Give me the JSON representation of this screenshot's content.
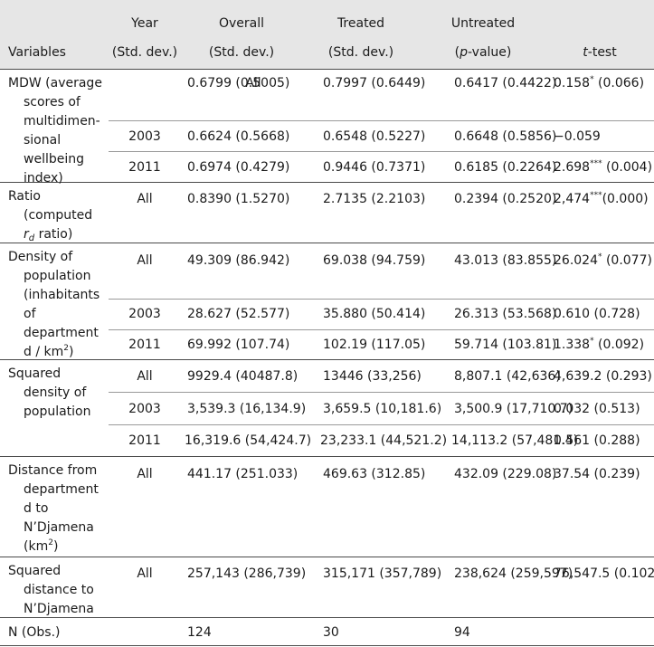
{
  "header": {
    "year_line1": "Year",
    "year_line2": "(Std. dev.)",
    "overall_line1": "Overall",
    "overall_line2": "(Std. dev.)",
    "treated_line1": "Treated",
    "treated_line2": "(Std. dev.)",
    "untreated_line1": "Untreated",
    "untreated_line2_pre": "(",
    "untreated_line2_italic": "p",
    "untreated_line2_post": "-value)",
    "variables": "Variables",
    "ttest_italic": "t",
    "ttest_rest": "-test"
  },
  "rows": {
    "mdw": {
      "label": [
        "MDW (average",
        "scores of",
        "multidimen-",
        "sional",
        "wellbeing",
        "index)"
      ],
      "all": {
        "year": "All",
        "overall": "0.6799 (0.5005)",
        "treated": "0.7997 (0.6449)",
        "untreated": "0.6417 (0.4422)",
        "t_value": "0.158",
        "t_stars": "*",
        "t_p": " (0.066)"
      },
      "y2003": {
        "year": "2003",
        "overall": "0.6624 (0.5668)",
        "treated": "0.6548 (0.5227)",
        "untreated": "0.6648 (0.5856)",
        "t_value": "−0.059",
        "t_stars": "",
        "t_p": ""
      },
      "y2011": {
        "year": "2011",
        "overall": "0.6974 (0.4279)",
        "treated": "0.9446 (0.7371)",
        "untreated": "0.6185 (0.2264)",
        "t_value": "2.698",
        "t_stars": "***",
        "t_p": " (0.004)"
      }
    },
    "ratio": {
      "label_line1": "Ratio",
      "label_line2": "(computed",
      "label_r": "r",
      "label_sub": "d",
      "label_ratio": " ratio)",
      "all": {
        "year": "All",
        "overall": "0.8390 (1.5270)",
        "treated": "2.7135 (2.2103)",
        "untreated": "0.2394 (0.2520)",
        "t_value": "2,474",
        "t_stars": "***",
        "t_p": "(0.000)"
      }
    },
    "density": {
      "label": [
        "Density of",
        "population",
        "(inhabitants",
        "of",
        "department"
      ],
      "label_last": "d / km",
      "label_sup": "2",
      "label_close": ")",
      "all": {
        "year": "All",
        "overall": "49.309 (86.942)",
        "treated": "69.038 (94.759)",
        "untreated": "43.013 (83.855)",
        "t_value": "26.024",
        "t_stars": "*",
        "t_p": " (0.077)"
      },
      "y2003": {
        "year": "2003",
        "overall": "28.627 (52.577)",
        "treated": "35.880 (50.414)",
        "untreated": "26.313 (53.568)",
        "t_value": "0.610 (0.728)",
        "t_stars": "",
        "t_p": ""
      },
      "y2011": {
        "year": "2011",
        "overall": "69.992 (107.74)",
        "treated": "102.19 (117.05)",
        "untreated": "59.714 (103.81)",
        "t_value": "1.338",
        "t_stars": "*",
        "t_p": " (0.092)"
      }
    },
    "sqdensity": {
      "label": [
        "Squared",
        "density of",
        "population"
      ],
      "all": {
        "year": "All",
        "overall": "9929.4 (40487.8)",
        "treated": "13446 (33,256)",
        "untreated": "8,807.1 (42,636)",
        "t_value": "4,639.2 (0.293)"
      },
      "y2003": {
        "year": "2003",
        "overall": "3,539.3 (16,134.9)",
        "treated": "3,659.5 (10,181.6)",
        "untreated": "3,500.9 (17,710.7)",
        "t_value": "0.032 (0.513)"
      },
      "y2011": {
        "year": "2011",
        "overall": "16,319.6 (54,424.7)",
        "treated": "23,233.1 (44,521.2)",
        "untreated": "14,113.2 (57,481.4)",
        "t_value": "0.561 (0.288)"
      }
    },
    "distance": {
      "label": [
        "Distance from",
        "department",
        "d to",
        "N’Djamena"
      ],
      "label_last": "(km",
      "label_sup": "2",
      "label_close": ")",
      "all": {
        "year": "All",
        "overall": "441.17 (251.033)",
        "treated": "469.63 (312.85)",
        "untreated": "432.09 (229.08)",
        "t_value": "37.54 (0.239)"
      }
    },
    "sqdistance": {
      "label": [
        "Squared",
        "distance to",
        "N’Djamena"
      ],
      "all": {
        "year": "All",
        "overall": "257,143 (286,739)",
        "treated": "315,171 (357,789)",
        "untreated": "238,624 (259,597)",
        "t_value": "76,547.5 (0.102)"
      }
    },
    "nobs": {
      "label": "N (Obs.)",
      "overall": "124",
      "treated": "30",
      "untreated": "94"
    }
  }
}
